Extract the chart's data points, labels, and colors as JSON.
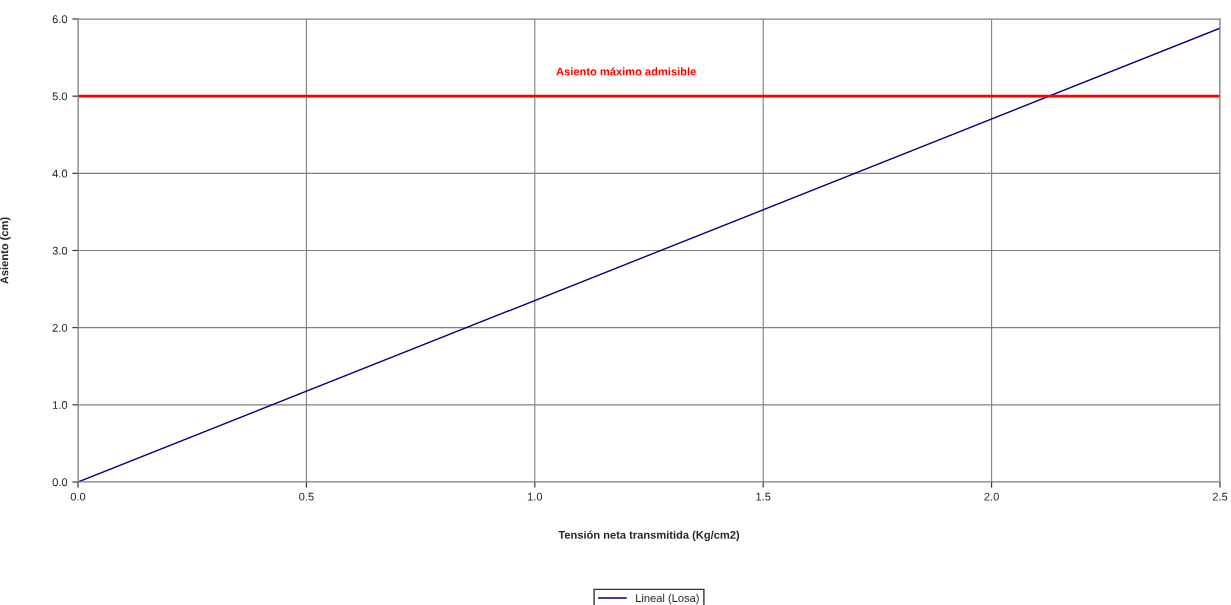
{
  "chart_data": {
    "type": "line",
    "xlabel": "Tensión neta transmitida (Kg/cm2)",
    "ylabel": "Asiento (cm)",
    "series": [
      {
        "name": "Lineal (Losa)",
        "color": "#000080",
        "x": [
          0,
          2.5
        ],
        "values": [
          0,
          5.88
        ]
      }
    ],
    "xlim": [
      0,
      2.5
    ],
    "ylim": [
      0,
      6
    ],
    "xticks": [
      {
        "value": 0,
        "label": "0.0"
      },
      {
        "value": 0.5,
        "label": "0.5"
      },
      {
        "value": 1,
        "label": "1.0"
      },
      {
        "value": 1.5,
        "label": "1.5"
      },
      {
        "value": 2,
        "label": "2.0"
      },
      {
        "value": 2.5,
        "label": "2.5"
      }
    ],
    "yticks": [
      {
        "value": 0,
        "label": "0.0"
      },
      {
        "value": 1,
        "label": "1.0"
      },
      {
        "value": 2,
        "label": "2.0"
      },
      {
        "value": 3,
        "label": "3.0"
      },
      {
        "value": 4,
        "label": "4.0"
      },
      {
        "value": 5,
        "label": "5.0"
      },
      {
        "value": 6,
        "label": "6.0"
      }
    ],
    "ref_lines": [
      {
        "axis": "y",
        "value": 5,
        "label": "Asiento máximo admisible",
        "color": "#ff0000"
      }
    ],
    "grid": true,
    "legend": "bottom",
    "marker": "none",
    "line_style": "solid"
  }
}
